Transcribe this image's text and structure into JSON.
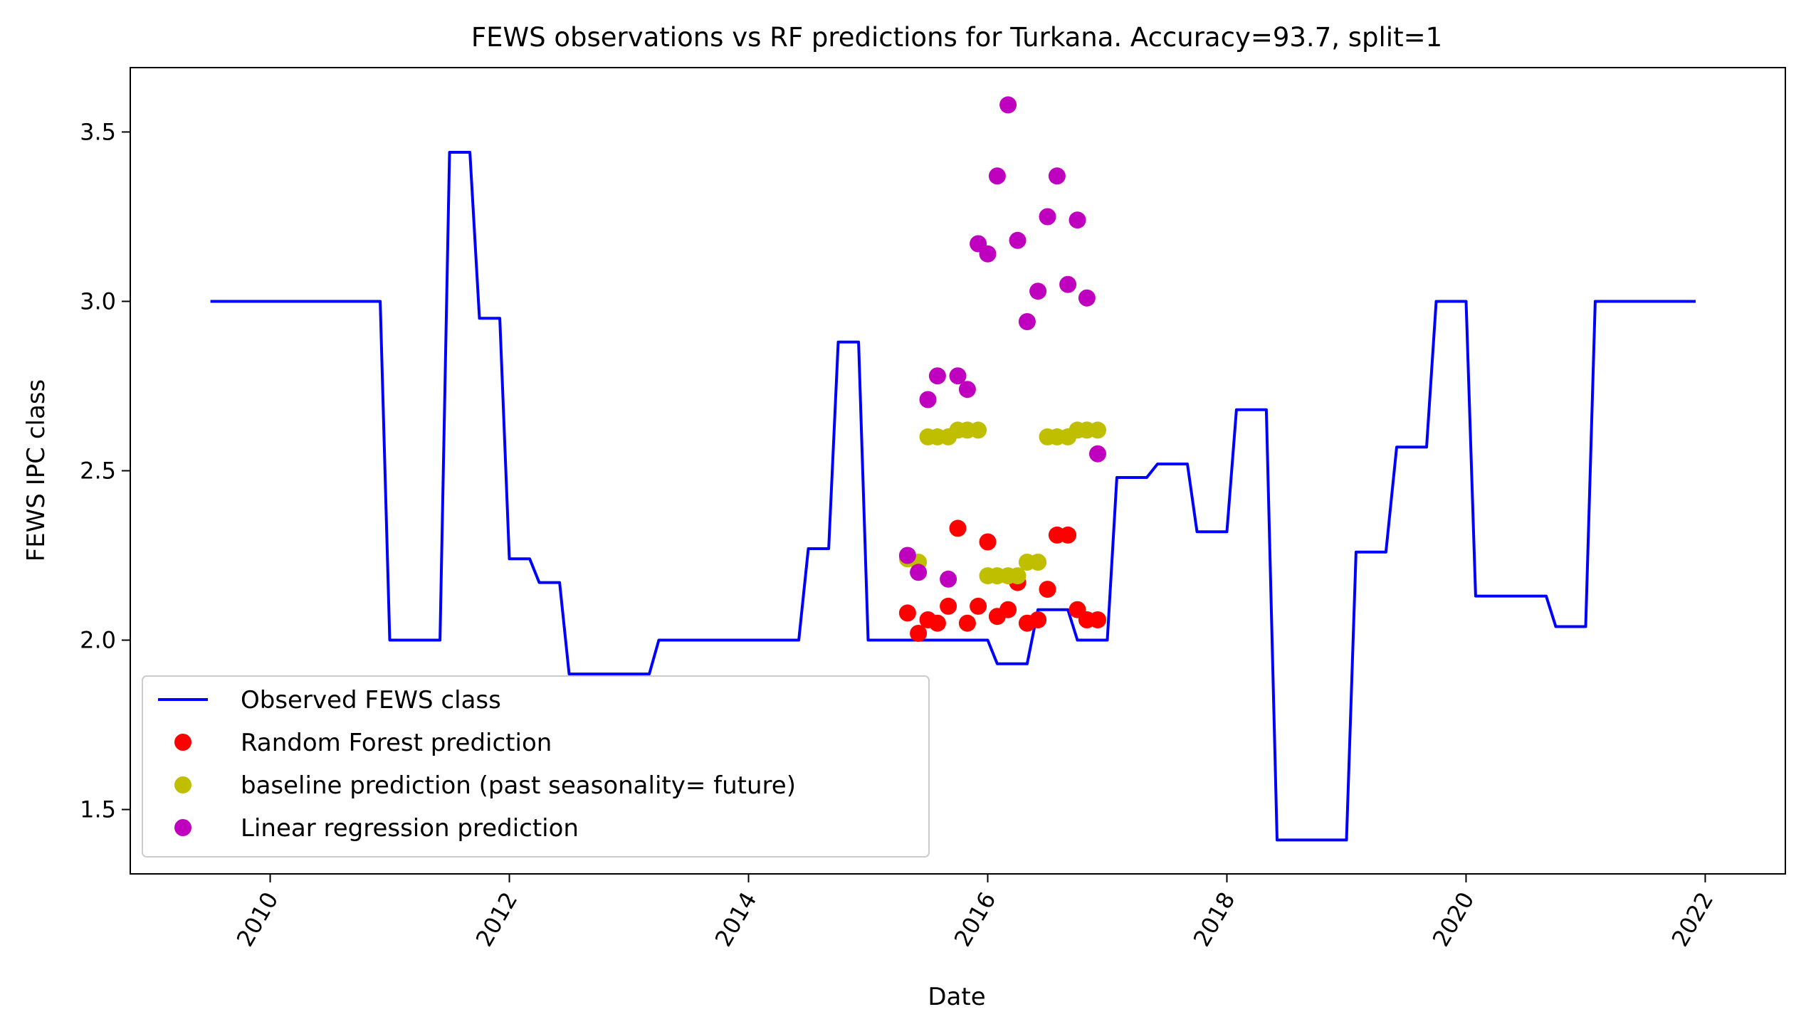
{
  "chart_data": {
    "type": "line",
    "title": "FEWS observations vs RF predictions for Turkana. Accuracy=93.7, split=1",
    "xlabel": "Date",
    "ylabel": "FEWS IPC class",
    "xlim": [
      2008.83,
      2022.67
    ],
    "ylim": [
      1.31,
      3.69
    ],
    "x_ticks": [
      2010,
      2012,
      2014,
      2016,
      2018,
      2020,
      2022
    ],
    "x_tick_labels": [
      "2010",
      "2012",
      "2014",
      "2016",
      "2018",
      "2020",
      "2022"
    ],
    "y_ticks": [
      1.5,
      2.0,
      2.5,
      3.0,
      3.5
    ],
    "y_tick_labels": [
      "1.5",
      "2.0",
      "2.5",
      "3.0",
      "3.5"
    ],
    "grid": false,
    "legend_position": "lower-left",
    "series": [
      {
        "name": "Observed FEWS class",
        "kind": "line",
        "color": "#0000ff",
        "x": [
          2009.5,
          2010.92,
          2011.0,
          2011.42,
          2011.5,
          2011.67,
          2011.75,
          2011.92,
          2012.0,
          2012.17,
          2012.25,
          2012.42,
          2012.5,
          2013.17,
          2013.25,
          2014.42,
          2014.5,
          2014.67,
          2014.75,
          2014.92,
          2015.0,
          2016.0,
          2016.08,
          2016.33,
          2016.42,
          2016.67,
          2016.75,
          2017.0,
          2017.08,
          2017.33,
          2017.42,
          2017.67,
          2017.75,
          2018.0,
          2018.08,
          2018.33,
          2018.42,
          2019.0,
          2019.08,
          2019.33,
          2019.42,
          2019.67,
          2019.75,
          2020.0,
          2020.08,
          2020.67,
          2020.75,
          2021.0,
          2021.08,
          2021.92
        ],
        "y": [
          3.0,
          3.0,
          2.0,
          2.0,
          3.44,
          3.44,
          2.95,
          2.95,
          2.24,
          2.24,
          2.17,
          2.17,
          1.9,
          1.9,
          2.0,
          2.0,
          2.27,
          2.27,
          2.88,
          2.88,
          2.0,
          2.0,
          1.93,
          1.93,
          2.09,
          2.09,
          2.0,
          2.0,
          2.48,
          2.48,
          2.52,
          2.52,
          2.32,
          2.32,
          2.68,
          2.68,
          1.41,
          1.41,
          2.26,
          2.26,
          2.57,
          2.57,
          3.0,
          3.0,
          2.13,
          2.13,
          2.04,
          2.04,
          3.0,
          3.0
        ]
      },
      {
        "name": "Random Forest prediction",
        "kind": "scatter",
        "color": "#ff0000",
        "x": [
          2015.33,
          2015.42,
          2015.5,
          2015.58,
          2015.67,
          2015.75,
          2015.83,
          2015.92,
          2016.0,
          2016.08,
          2016.17,
          2016.25,
          2016.33,
          2016.42,
          2016.5,
          2016.58,
          2016.67,
          2016.75,
          2016.83,
          2016.92
        ],
        "y": [
          2.08,
          2.02,
          2.06,
          2.05,
          2.1,
          2.33,
          2.05,
          2.1,
          2.29,
          2.07,
          2.09,
          2.17,
          2.05,
          2.06,
          2.15,
          2.31,
          2.31,
          2.09,
          2.06,
          2.06
        ]
      },
      {
        "name": "baseline prediction (past seasonality= future)",
        "kind": "scatter",
        "color": "#bfbf00",
        "x": [
          2015.33,
          2015.42,
          2015.5,
          2015.58,
          2015.67,
          2015.75,
          2015.83,
          2015.92,
          2016.0,
          2016.08,
          2016.17,
          2016.25,
          2016.33,
          2016.42,
          2016.5,
          2016.58,
          2016.67,
          2016.75,
          2016.83,
          2016.92
        ],
        "y": [
          2.24,
          2.23,
          2.6,
          2.6,
          2.6,
          2.62,
          2.62,
          2.62,
          2.19,
          2.19,
          2.19,
          2.19,
          2.23,
          2.23,
          2.6,
          2.6,
          2.6,
          2.62,
          2.62,
          2.62
        ]
      },
      {
        "name": "Linear regression prediction",
        "kind": "scatter",
        "color": "#bf00bf",
        "x": [
          2015.33,
          2015.42,
          2015.5,
          2015.58,
          2015.67,
          2015.75,
          2015.83,
          2015.92,
          2016.0,
          2016.08,
          2016.17,
          2016.25,
          2016.33,
          2016.42,
          2016.5,
          2016.58,
          2016.67,
          2016.75,
          2016.83,
          2016.92
        ],
        "y": [
          2.25,
          2.2,
          2.71,
          2.78,
          2.18,
          2.78,
          2.74,
          3.17,
          3.14,
          3.37,
          3.58,
          3.18,
          2.94,
          3.03,
          3.25,
          3.37,
          3.05,
          3.24,
          3.01,
          2.55
        ]
      }
    ]
  }
}
